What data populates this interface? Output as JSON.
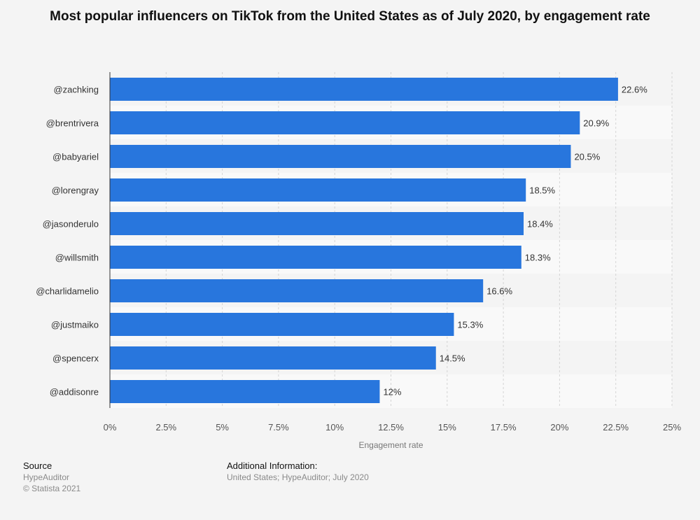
{
  "chart_data": {
    "type": "bar",
    "orientation": "horizontal",
    "title": "Most popular influencers on TikTok from the United States as of July 2020, by engagement rate",
    "categories": [
      "@zachking",
      "@brentrivera",
      "@babyariel",
      "@lorengray",
      "@jasonderulo",
      "@willsmith",
      "@charlidamelio",
      "@justmaiko",
      "@spencerx",
      "@addisonre"
    ],
    "values": [
      22.6,
      20.9,
      20.5,
      18.5,
      18.4,
      18.3,
      16.6,
      15.3,
      14.5,
      12
    ],
    "value_labels": [
      "22.6%",
      "20.9%",
      "20.5%",
      "18.5%",
      "18.4%",
      "18.3%",
      "16.6%",
      "15.3%",
      "14.5%",
      "12%"
    ],
    "xlabel": "Engagement rate",
    "ylabel": "",
    "xlim": [
      0,
      25
    ],
    "xticks": [
      0,
      2.5,
      5,
      7.5,
      10,
      12.5,
      15,
      17.5,
      20,
      22.5,
      25
    ],
    "xtick_labels": [
      "0%",
      "2.5%",
      "5%",
      "7.5%",
      "10%",
      "12.5%",
      "15%",
      "17.5%",
      "20%",
      "22.5%",
      "25%"
    ],
    "grid": true,
    "bar_color": "#2876dd"
  },
  "footer": {
    "source_heading": "Source",
    "source_name": "HypeAuditor",
    "copyright": "© Statista 2021",
    "info_heading": "Additional Information:",
    "info_text": "United States; HypeAuditor; July 2020"
  }
}
